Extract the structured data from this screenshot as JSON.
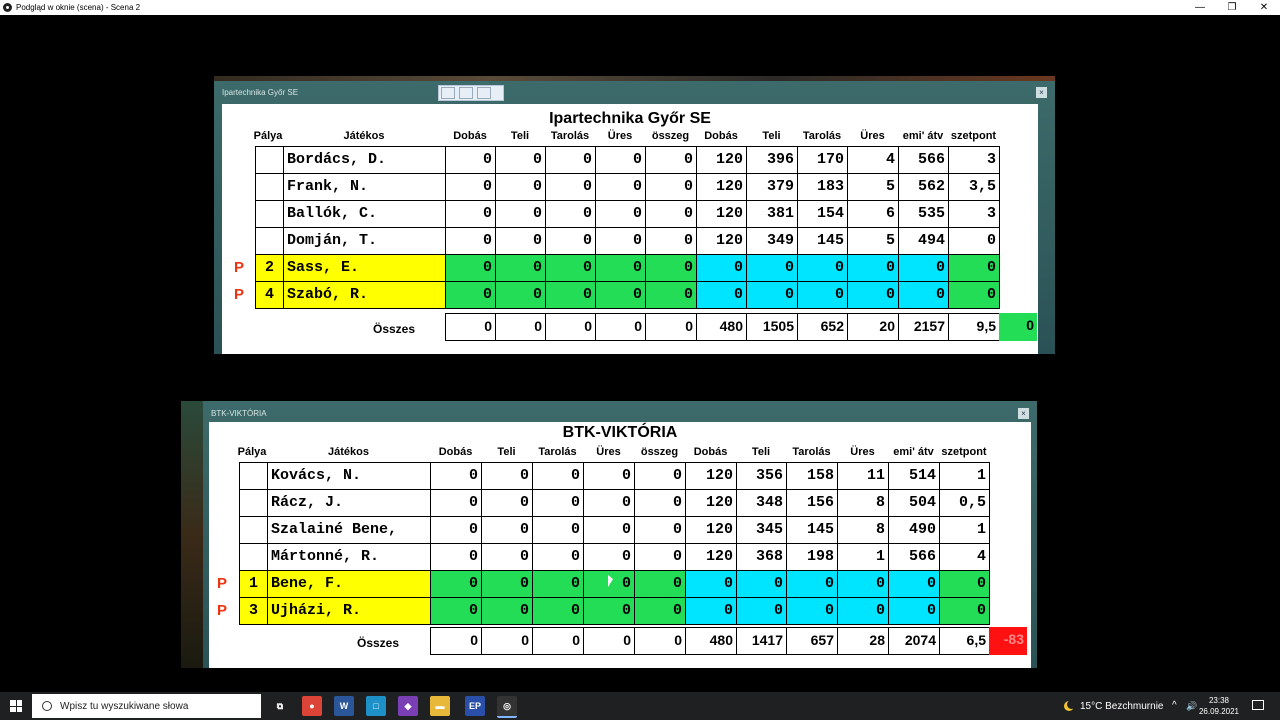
{
  "window": {
    "title": "Podgląd w oknie (scena) - Scena 2",
    "minimize": "—",
    "maximize": "❐",
    "close": "✕"
  },
  "headers": [
    "Pálya",
    "Játékos",
    "Dobás",
    "Teli",
    "Tarolás",
    "Üres",
    "összeg",
    "Dobás",
    "Teli",
    "Tarolás",
    "Üres",
    "emi' átv",
    "szetpont"
  ],
  "sum_label": "Összes",
  "p_mark": "P",
  "close_glyph": "×",
  "boards": [
    {
      "window_title": "Ipartechnika Győr SE",
      "team_name": "Ipartechnika Győr SE",
      "rows": [
        {
          "pos": "",
          "name": "Bordács, D.",
          "p": "",
          "vals": [
            "0",
            "0",
            "0",
            "0",
            "0",
            "120",
            "396",
            "170",
            "4",
            "566",
            "3"
          ]
        },
        {
          "pos": "",
          "name": "Frank, N.",
          "p": "",
          "vals": [
            "0",
            "0",
            "0",
            "0",
            "0",
            "120",
            "379",
            "183",
            "5",
            "562",
            "3,5"
          ]
        },
        {
          "pos": "",
          "name": "Ballók, C.",
          "p": "",
          "vals": [
            "0",
            "0",
            "0",
            "0",
            "0",
            "120",
            "381",
            "154",
            "6",
            "535",
            "3"
          ]
        },
        {
          "pos": "",
          "name": "Domján, T.",
          "p": "",
          "vals": [
            "0",
            "0",
            "0",
            "0",
            "0",
            "120",
            "349",
            "145",
            "5",
            "494",
            "0"
          ]
        },
        {
          "pos": "2",
          "name": "Sass, E.",
          "p": "P",
          "vals": [
            "0",
            "0",
            "0",
            "0",
            "0",
            "0",
            "0",
            "0",
            "0",
            "0",
            "0"
          ]
        },
        {
          "pos": "4",
          "name": "Szabó, R.",
          "p": "P",
          "vals": [
            "0",
            "0",
            "0",
            "0",
            "0",
            "0",
            "0",
            "0",
            "0",
            "0",
            "0"
          ]
        }
      ],
      "totals": [
        "0",
        "0",
        "0",
        "0",
        "0",
        "480",
        "1505",
        "652",
        "20",
        "2157",
        "9,5"
      ],
      "extra": "0",
      "extra_color": "#22dd55"
    },
    {
      "window_title": "BTK-VIKTÓRIA",
      "team_name": "BTK-VIKTÓRIA",
      "rows": [
        {
          "pos": "",
          "name": "Kovács, N.",
          "p": "",
          "vals": [
            "0",
            "0",
            "0",
            "0",
            "0",
            "120",
            "356",
            "158",
            "11",
            "514",
            "1"
          ]
        },
        {
          "pos": "",
          "name": "Rácz, J.",
          "p": "",
          "vals": [
            "0",
            "0",
            "0",
            "0",
            "0",
            "120",
            "348",
            "156",
            "8",
            "504",
            "0,5"
          ]
        },
        {
          "pos": "",
          "name": "Szalainé Bene,",
          "p": "",
          "vals": [
            "0",
            "0",
            "0",
            "0",
            "0",
            "120",
            "345",
            "145",
            "8",
            "490",
            "1"
          ]
        },
        {
          "pos": "",
          "name": "Mártonné, R.",
          "p": "",
          "vals": [
            "0",
            "0",
            "0",
            "0",
            "0",
            "120",
            "368",
            "198",
            "1",
            "566",
            "4"
          ]
        },
        {
          "pos": "1",
          "name": "Bene, F.",
          "p": "P",
          "vals": [
            "0",
            "0",
            "0",
            "0",
            "0",
            "0",
            "0",
            "0",
            "0",
            "0",
            "0"
          ]
        },
        {
          "pos": "3",
          "name": "Ujházi, R.",
          "p": "P",
          "vals": [
            "0",
            "0",
            "0",
            "0",
            "0",
            "0",
            "0",
            "0",
            "0",
            "0",
            "0"
          ]
        }
      ],
      "totals": [
        "0",
        "0",
        "0",
        "0",
        "0",
        "480",
        "1417",
        "657",
        "28",
        "2074",
        "6,5"
      ],
      "extra": "-83",
      "extra_color": "#ff1111"
    }
  ],
  "taskbar": {
    "search_placeholder": "Wpisz tu wyszukiwane słowa",
    "apps": [
      "task-view",
      "chrome",
      "word",
      "app-blue",
      "visual-studio",
      "file-explorer",
      "app-ep",
      "obs"
    ],
    "app_glyphs": [
      "⧉",
      "●",
      "W",
      "□",
      "◆",
      "▬",
      "EP",
      "◎"
    ],
    "weather": "15°C  Bezchmurnie",
    "tray_glyphs": [
      "^",
      "⊡",
      "🔊"
    ],
    "time": "23:38",
    "date": "26.09.2021"
  }
}
